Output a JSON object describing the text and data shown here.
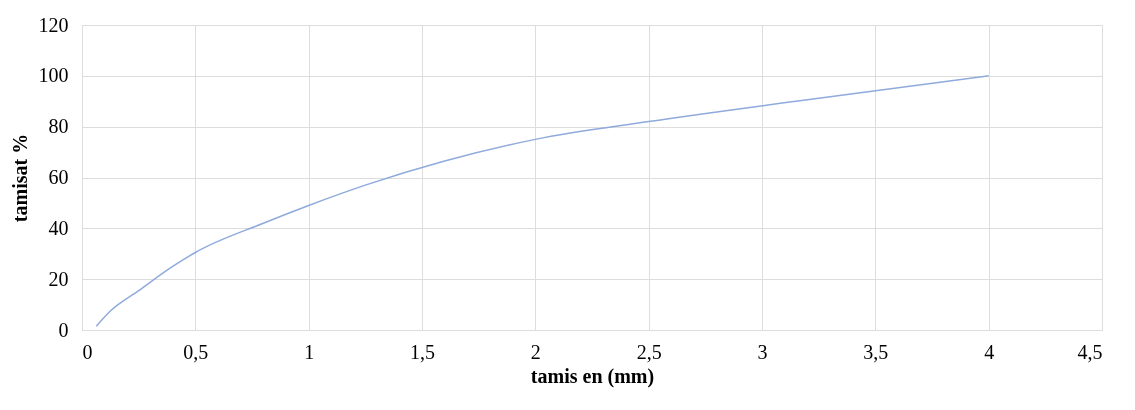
{
  "chart_data": {
    "type": "line",
    "xlabel": "tamis en (mm)",
    "ylabel": "tamisat %",
    "x": [
      0.063,
      0.125,
      0.25,
      0.4,
      0.5,
      0.8,
      1,
      1.25,
      1.6,
      2,
      2.5,
      3.15,
      4
    ],
    "series": [
      {
        "color": "#8faadc",
        "values": [
          1.5,
          7.5,
          15.5,
          25,
          30.5,
          42,
          49,
          57,
          66.5,
          75,
          82,
          90,
          100
        ]
      }
    ],
    "xlim": [
      0,
      4.5
    ],
    "xticks": [
      {
        "value": 0,
        "label": "0"
      },
      {
        "value": 0.5,
        "label": "0,5"
      },
      {
        "value": 1,
        "label": "1"
      },
      {
        "value": 1.5,
        "label": "1,5"
      },
      {
        "value": 2,
        "label": "2"
      },
      {
        "value": 2.5,
        "label": "2,5"
      },
      {
        "value": 3,
        "label": "3"
      },
      {
        "value": 3.5,
        "label": "3,5"
      },
      {
        "value": 4,
        "label": "4"
      },
      {
        "value": 4.5,
        "label": "4,5"
      }
    ],
    "ylim": [
      0,
      120
    ],
    "yticks": [
      0,
      20,
      40,
      60,
      80,
      100,
      120
    ],
    "grid": true,
    "legend": false,
    "marker": "none",
    "line_style": "solid"
  }
}
